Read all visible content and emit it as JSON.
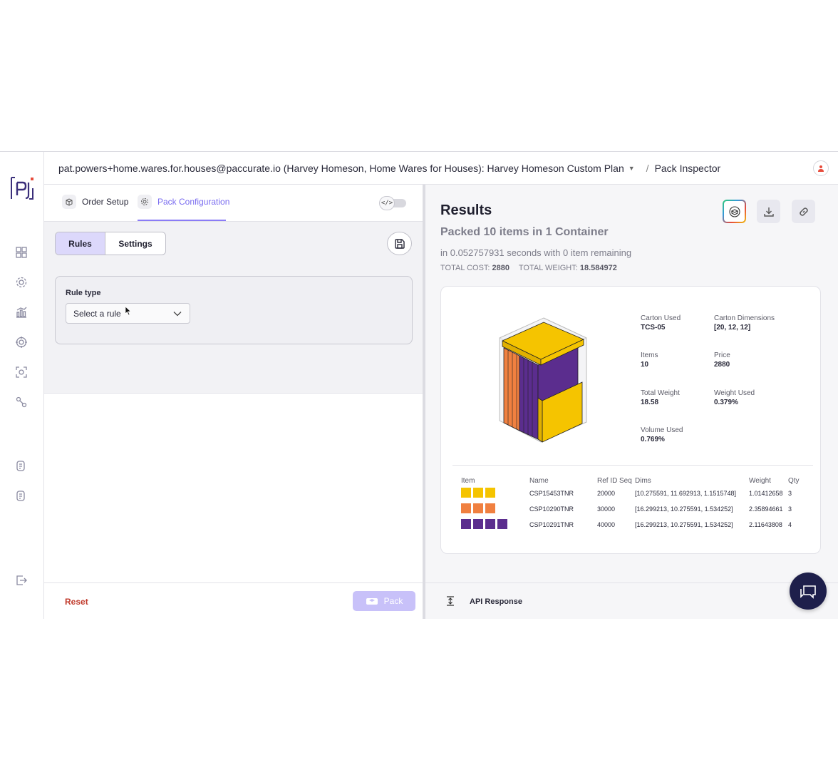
{
  "topbar": {
    "account": "pat.powers+home.wares.for.houses@paccurate.io (Harvey Homeson, Home Wares for Houses): Harvey Homeson Custom Plan",
    "separator": "/",
    "page": "Pack Inspector"
  },
  "sidebar": {
    "items": [
      {
        "icon": "dashboard-grid-icon"
      },
      {
        "icon": "gear-icon"
      },
      {
        "icon": "analytics-chart-icon"
      },
      {
        "icon": "target-icon"
      },
      {
        "icon": "scan-icon"
      },
      {
        "icon": "integrations-icon"
      },
      {
        "icon": "docs-icon"
      },
      {
        "icon": "docs-alt-icon"
      },
      {
        "icon": "logout-icon"
      }
    ]
  },
  "tabs": [
    {
      "label": "Order Setup",
      "icon": "box-icon"
    },
    {
      "label": "Pack Configuration",
      "icon": "config-gear-icon"
    }
  ],
  "config": {
    "segments": [
      "Rules",
      "Settings"
    ],
    "rule_type_label": "Rule type",
    "rule_select_value": "Select a rule"
  },
  "left_footer": {
    "reset_label": "Reset",
    "pack_label": "Pack"
  },
  "results": {
    "title": "Results",
    "summary": "Packed 10 items in 1 Container",
    "time": "in 0.052757931 seconds with 0 item remaining",
    "total_cost_label": "TOTAL COST:",
    "total_cost": "2880",
    "total_weight_label": "TOTAL WEIGHT:",
    "total_weight": "18.584972",
    "stats": [
      {
        "label": "Carton Used",
        "value": "TCS-05"
      },
      {
        "label": "Carton Dimensions",
        "value": "[20, 12, 12]"
      },
      {
        "label": "Items",
        "value": "10"
      },
      {
        "label": "Price",
        "value": "2880"
      },
      {
        "label": "Total Weight",
        "value": "18.58"
      },
      {
        "label": "Weight Used",
        "value": "0.379%"
      },
      {
        "label": "Volume Used",
        "value": "0.769%"
      }
    ],
    "table": {
      "headers": [
        "Item",
        "Name",
        "Ref ID",
        "Seq",
        "Dims",
        "Weight",
        "Qty"
      ],
      "rows": [
        {
          "color": "#f5c400",
          "swatches": 3,
          "name": "CSP15453TNR",
          "ref": "20000",
          "dims": "[10.275591, 11.692913, 1.1515748]",
          "weight": "1.01412658",
          "qty": "3"
        },
        {
          "color": "#f08040",
          "swatches": 3,
          "name": "CSP10290TNR",
          "ref": "30000",
          "dims": "[16.299213, 10.275591, 1.534252]",
          "weight": "2.35894661",
          "qty": "3"
        },
        {
          "color": "#5b2d8e",
          "swatches": 4,
          "name": "CSP10291TNR",
          "ref": "40000",
          "dims": "[16.299213, 10.275591, 1.534252]",
          "weight": "2.11643808",
          "qty": "4"
        }
      ]
    }
  },
  "right_footer": {
    "api_label": "API Response"
  },
  "colors": {
    "accent": "#8b7cf6",
    "danger": "#c03a2b",
    "chat_bg": "#1e1f4b"
  }
}
